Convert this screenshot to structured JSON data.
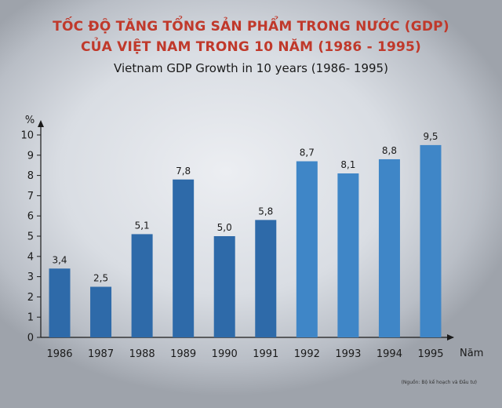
{
  "title_vn_line1": "TỐC ĐỘ TĂNG TỔNG SẢN PHẨM TRONG NƯỚC (GDP)",
  "title_vn_line2": "CỦA VIỆT NAM TRONG 10 NĂM (1986 - 1995)",
  "title_en": "Vietnam GDP Growth in 10 years (1986- 1995)",
  "source_note": "(Nguồn: Bộ kế hoạch và Đầu tư)",
  "colors": {
    "bar": "#2e6aa9",
    "bar_light": "#3f86c7",
    "title": "#c0392b",
    "axis": "#1a1a1a"
  },
  "chart_data": {
    "type": "bar",
    "categories": [
      "1986",
      "1987",
      "1988",
      "1989",
      "1990",
      "1991",
      "1992",
      "1993",
      "1994",
      "1995"
    ],
    "values": [
      3.4,
      2.5,
      5.1,
      7.8,
      5.0,
      5.8,
      8.7,
      8.1,
      8.8,
      9.5
    ],
    "data_labels": [
      "3,4",
      "2,5",
      "5,1",
      "7,8",
      "5,0",
      "5,8",
      "8,7",
      "8,1",
      "8,8",
      "9,5"
    ],
    "xlabel": "Năm",
    "ylabel": "%",
    "ylim": [
      0,
      10
    ],
    "yticks": [
      0,
      1,
      2,
      3,
      4,
      5,
      6,
      7,
      8,
      9,
      10
    ],
    "ytick_labels": [
      "0",
      "1",
      "2",
      "3",
      "4",
      "5",
      "6",
      "7",
      "8",
      "9",
      "10"
    ],
    "grid": false,
    "legend": "none"
  }
}
